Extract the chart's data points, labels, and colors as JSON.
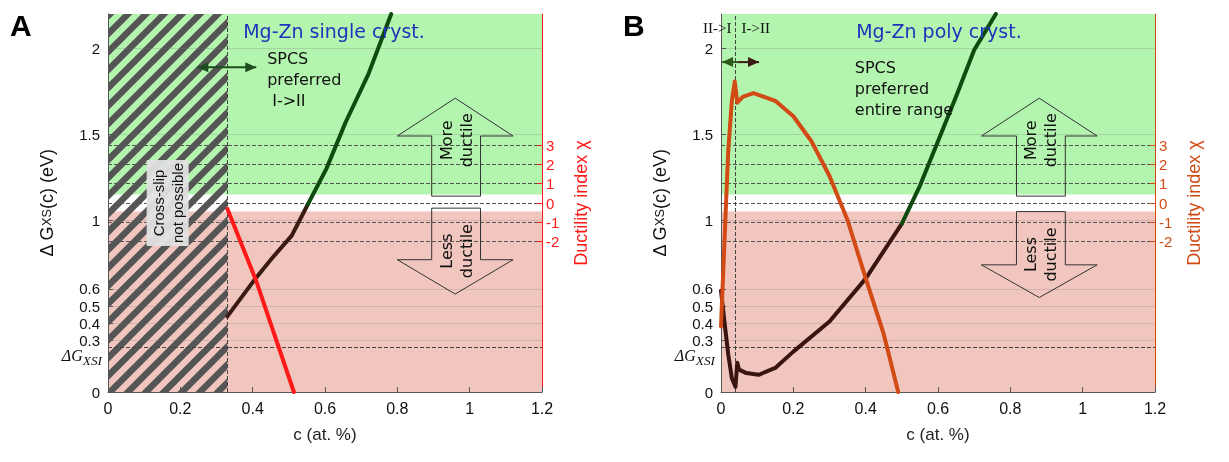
{
  "chart_data": [
    {
      "type": "line",
      "title": "Mg-Zn single cryst.",
      "xlabel": "c (at. %)",
      "ylabel": "Δ G$_{XS}$(c) (eV)",
      "y2label": "Ductility index χ",
      "xlim": [
        0,
        1.2
      ],
      "xticks": [
        0,
        0.2,
        0.4,
        0.6,
        0.8,
        1,
        1.2
      ],
      "ylim": [
        0,
        2.2
      ],
      "yticks": [
        0,
        0.3,
        0.4,
        0.5,
        0.6,
        1,
        1.5,
        2
      ],
      "y2lim": [
        -9.8,
        9.8
      ],
      "y2ticks": [
        -2,
        -1,
        0,
        1,
        2,
        3
      ],
      "grid": "y",
      "series": [
        {
          "color": "#3a1a12",
          "x": [
            0.33,
            0.404,
            0.45,
            0.508,
            0.552
          ],
          "values": [
            0.44,
            0.65,
            0.77,
            0.91,
            1.09
          ]
        },
        {
          "color": "#0f4a0f",
          "x": [
            0.552,
            0.604,
            0.657,
            0.72,
            0.783
          ],
          "values": [
            1.09,
            1.3,
            1.57,
            1.85,
            2.2
          ]
        },
        {
          "color": "#ff1a1a",
          "axis": "y2",
          "x": [
            0.33,
            0.409,
            0.514
          ],
          "values": [
            -0.3,
            -4.0,
            -9.8
          ]
        }
      ],
      "bands": [
        {
          "axis": "y",
          "from": 1.15,
          "to": 2.2,
          "color": "#b3f5ae"
        },
        {
          "axis": "y",
          "from": 0,
          "to": 1.05,
          "color": "#f1c6be"
        },
        {
          "axis": "x",
          "from": 0,
          "to": 0.33,
          "label": "Cross-slip\nnot possible",
          "color": "#555555"
        }
      ],
      "ref_lines": [
        {
          "axis": "y",
          "value": 0.26,
          "label": "ΔG$_{XSI}$",
          "color": "#444444",
          "line_style": "dashed"
        },
        {
          "axis": "x",
          "value": 0.33,
          "color": "#444444",
          "line_style": "dashed"
        }
      ],
      "annotations": [
        "A",
        "More\nductile",
        "Less\nductile",
        "SPCS\npreferred\n I->II"
      ]
    },
    {
      "type": "line",
      "title": "Mg-Zn poly cryst.",
      "xlabel": "c (at. %)",
      "ylabel": "Δ G$_{XS}$(c) (eV)",
      "y2label": "Ductility index χ",
      "xlim": [
        0,
        1.2
      ],
      "xticks": [
        0,
        0.2,
        0.4,
        0.6,
        0.8,
        1,
        1.2
      ],
      "ylim": [
        0,
        2.2
      ],
      "yticks": [
        0,
        0.3,
        0.4,
        0.5,
        0.6,
        1,
        1.5,
        2
      ],
      "y2lim": [
        -9.8,
        9.8
      ],
      "y2ticks": [
        -2,
        -1,
        0,
        1,
        2,
        3
      ],
      "grid": "y",
      "series": [
        {
          "color": "#3a1510",
          "x": [
            0,
            0.01,
            0.02,
            0.03,
            0.04,
            0.045,
            0.05,
            0.07,
            0.104,
            0.15,
            0.2,
            0.3,
            0.4,
            0.5
          ],
          "values": [
            0.59,
            0.4,
            0.22,
            0.08,
            0.03,
            0.17,
            0.13,
            0.11,
            0.1,
            0.14,
            0.235,
            0.41,
            0.66,
            0.98
          ]
        },
        {
          "color": "#0f4a0f",
          "x": [
            0.5,
            0.55,
            0.6,
            0.65,
            0.7,
            0.76
          ],
          "values": [
            0.98,
            1.2,
            1.46,
            1.72,
            1.99,
            2.2
          ]
        },
        {
          "color": "#d24a14",
          "axis": "y2",
          "x": [
            0,
            0.01,
            0.02,
            0.03,
            0.038,
            0.045,
            0.06,
            0.09,
            0.15,
            0.2,
            0.25,
            0.3,
            0.35,
            0.4,
            0.45,
            0.49
          ],
          "values": [
            -6.4,
            -1.8,
            2.7,
            5.3,
            6.3,
            5.2,
            5.5,
            5.7,
            5.3,
            4.5,
            3.2,
            1.4,
            -0.9,
            -3.9,
            -6.8,
            -9.8
          ]
        }
      ],
      "bands": [
        {
          "axis": "y",
          "from": 1.15,
          "to": 2.2,
          "color": "#b3f5ae"
        },
        {
          "axis": "y",
          "from": 0,
          "to": 1.05,
          "color": "#f1c6be"
        }
      ],
      "ref_lines": [
        {
          "axis": "y",
          "value": 0.26,
          "label": "ΔG$_{XSI}$",
          "color": "#444444",
          "line_style": "dashed"
        },
        {
          "axis": "x",
          "value": 0.04,
          "color": "#444444",
          "line_style": "dashed"
        }
      ],
      "annotations": [
        "B",
        "More\nductile",
        "Less\nductile",
        "SPCS\npreferred\nentire range",
        "II->I",
        "I->II"
      ]
    }
  ]
}
